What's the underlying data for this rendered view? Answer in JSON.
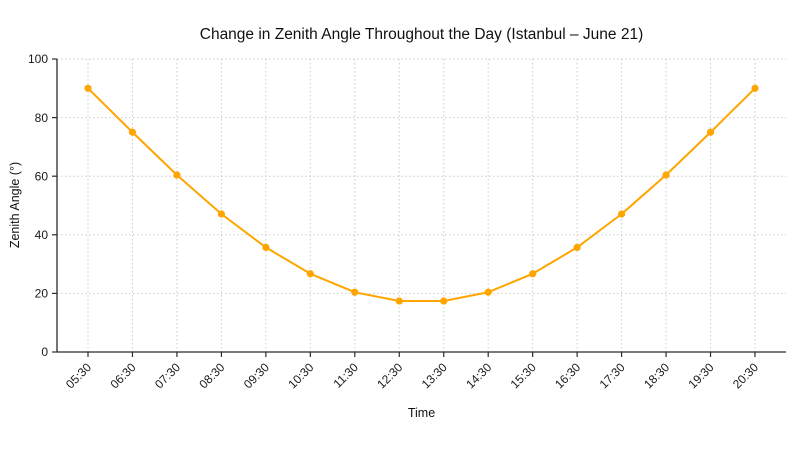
{
  "chart_data": {
    "type": "line",
    "title": "Change in Zenith Angle Throughout the Day (Istanbul – June 21)",
    "xlabel": "Time",
    "ylabel": "Zenith Angle (°)",
    "categories": [
      "05:30",
      "06:30",
      "07:30",
      "08:30",
      "09:30",
      "10:30",
      "11:30",
      "12:30",
      "13:30",
      "14:30",
      "15:30",
      "16:30",
      "17:30",
      "18:30",
      "19:30",
      "20:30"
    ],
    "values": [
      90,
      75,
      60.4,
      47.1,
      35.7,
      26.7,
      20.4,
      17.4,
      17.4,
      20.4,
      26.7,
      35.7,
      47.1,
      60.4,
      75,
      90
    ],
    "ylim": [
      0,
      100
    ],
    "yticks": [
      0,
      20,
      40,
      60,
      80,
      100
    ],
    "xtick_rotation": 45,
    "grid": true,
    "grid_style": "dotted",
    "legend": "none",
    "marker": "circle",
    "colors": {
      "line": "#FFA500",
      "marker": "#FFA500",
      "grid": "#cccccc",
      "axis": "#2b2b2b",
      "tick_text": "#1a1a1a"
    }
  }
}
